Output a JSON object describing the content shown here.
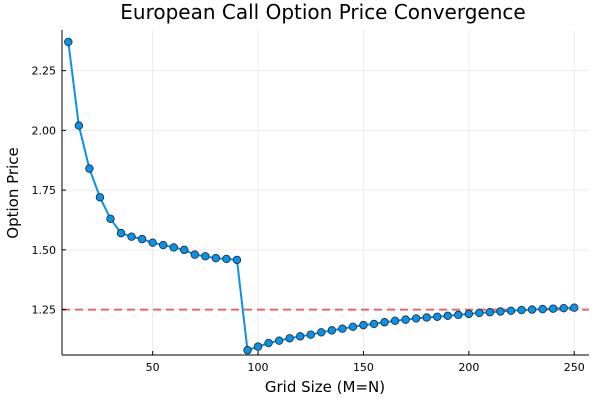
{
  "chart_data": {
    "type": "line",
    "title": "European Call Option Price Convergence",
    "xlabel": "Grid Size (M=N)",
    "ylabel": "Option Price",
    "xlim": [
      7,
      257
    ],
    "ylim": [
      1.06,
      2.42
    ],
    "xticks": [
      50,
      100,
      150,
      200,
      250
    ],
    "yticks": [
      1.25,
      1.5,
      1.75,
      2.0,
      2.25
    ],
    "xtick_labels": [
      "50",
      "100",
      "150",
      "200",
      "250"
    ],
    "ytick_labels": [
      "1.25",
      "1.50",
      "1.75",
      "2.00",
      "2.25"
    ],
    "grid": true,
    "legend": false,
    "reference_line": {
      "y": 1.25,
      "style": "dashed",
      "color": "#e26a6a"
    },
    "colors": {
      "series": "#0a91e8",
      "marker_edge": "#1c2a33",
      "grid": "#ececec",
      "axis": "#000000"
    },
    "series": [
      {
        "x": [
          10,
          15,
          20,
          25,
          30,
          35,
          40,
          45,
          50,
          55,
          60,
          65,
          70,
          75,
          80,
          85,
          90,
          95,
          100,
          105,
          110,
          115,
          120,
          125,
          130,
          135,
          140,
          145,
          150,
          155,
          160,
          165,
          170,
          175,
          180,
          185,
          190,
          195,
          200,
          205,
          210,
          215,
          220,
          225,
          230,
          235,
          240,
          245,
          250
        ],
        "y": [
          2.37,
          2.02,
          1.84,
          1.72,
          1.63,
          1.57,
          1.555,
          1.545,
          1.53,
          1.52,
          1.51,
          1.5,
          1.48,
          1.473,
          1.465,
          1.462,
          1.458,
          1.08,
          1.095,
          1.11,
          1.12,
          1.13,
          1.138,
          1.145,
          1.155,
          1.163,
          1.17,
          1.178,
          1.185,
          1.19,
          1.197,
          1.203,
          1.208,
          1.213,
          1.217,
          1.22,
          1.224,
          1.228,
          1.232,
          1.236,
          1.239,
          1.242,
          1.245,
          1.248,
          1.25,
          1.252,
          1.254,
          1.256,
          1.258
        ]
      }
    ]
  }
}
